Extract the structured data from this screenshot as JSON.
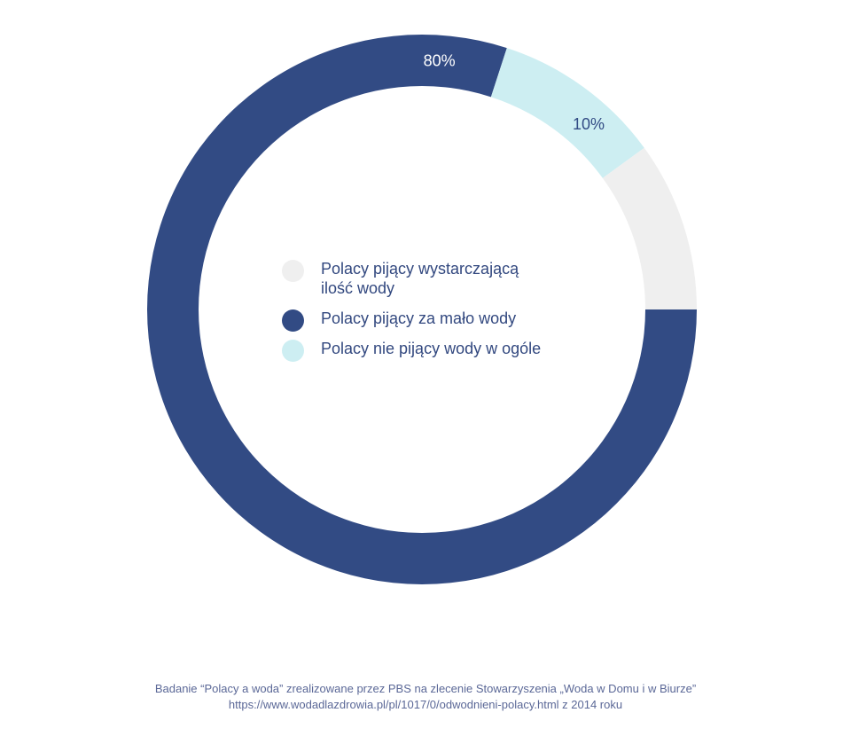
{
  "chart_data": {
    "type": "pie",
    "style": "donut",
    "title": "",
    "categories": [
      "Polacy pijący wystarczającą ilość wody",
      "Polacy pijący za mało wody",
      "Polacy nie pijący wody w ogóle"
    ],
    "values": [
      10,
      80,
      10
    ],
    "value_unit": "%",
    "colors": [
      "#efefef",
      "#324b84",
      "#cdeef2"
    ],
    "data_labels": [
      "",
      "80%",
      "10%"
    ],
    "data_label_colors": [
      "#324b84",
      "#ffffff",
      "#324b84"
    ],
    "legend_position": "center"
  },
  "legend": {
    "items": [
      {
        "label": "Polacy pijący wystarczającą ilość wody",
        "color": "#efefef"
      },
      {
        "label": "Polacy pijący za mało wody",
        "color": "#324b84"
      },
      {
        "label": "Polacy nie pijący wody w ogóle",
        "color": "#cdeef2"
      }
    ]
  },
  "footer": {
    "line1": "Badanie “Polacy a woda” zrealizowane przez PBS na zlecenie Stowarzyszenia „Woda w Domu i w Biurze”",
    "line2": "https://www.wodadlazdrowia.pl/pl/1017/0/odwodnieni-polacy.html z 2014 roku"
  }
}
